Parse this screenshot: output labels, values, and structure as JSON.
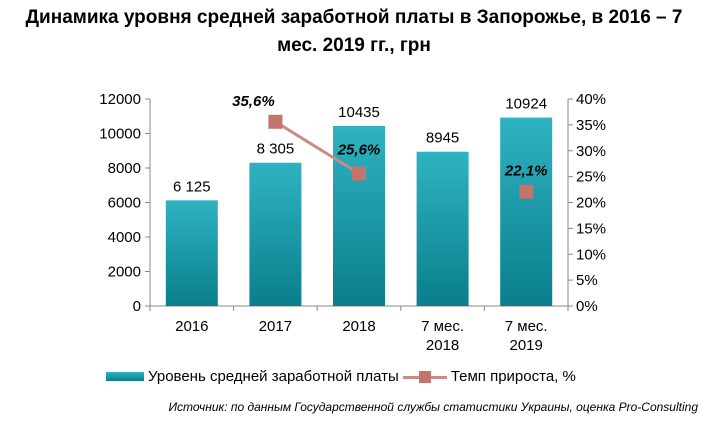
{
  "title_lines": [
    "Динамика уровня средней заработной платы в Запорожье, в 2016 – 7",
    "мес. 2019 гг., грн"
  ],
  "source": "Источник: по данным Государственной службы статистики Украины, оценка Pro-Consulting",
  "colors": {
    "bar": "#0f8f9d",
    "bar_light": "#2fb3c1",
    "line": "#cd8a84",
    "marker": "#c2746d"
  },
  "chart_data": {
    "type": "bar+line",
    "categories": [
      [
        "2016"
      ],
      [
        "2017"
      ],
      [
        "2018"
      ],
      [
        "7 мес.",
        "2018"
      ],
      [
        "7 мес.",
        "2019"
      ]
    ],
    "series": [
      {
        "name": "Уровень средней заработной платы",
        "type": "bar",
        "axis": "left",
        "values": [
          6125,
          8305,
          10435,
          8945,
          10924
        ],
        "labels": [
          "6 125",
          "8 305",
          "10435",
          "8945",
          "10924"
        ]
      },
      {
        "name": "Темп прироста, %",
        "type": "line",
        "axis": "right",
        "values": [
          null,
          35.6,
          25.6,
          null,
          22.1
        ],
        "labels": [
          "",
          "35,6%",
          "25,6%",
          "",
          "22,1%"
        ]
      }
    ],
    "left_axis": {
      "range": [
        0,
        12000
      ],
      "ticks": [
        "0",
        "2000",
        "4000",
        "6000",
        "8000",
        "10000",
        "12000"
      ]
    },
    "right_axis": {
      "range": [
        0,
        40
      ],
      "ticks": [
        "0%",
        "5%",
        "10%",
        "15%",
        "20%",
        "25%",
        "30%",
        "35%",
        "40%"
      ]
    },
    "grid": false,
    "legend_position": "bottom"
  }
}
